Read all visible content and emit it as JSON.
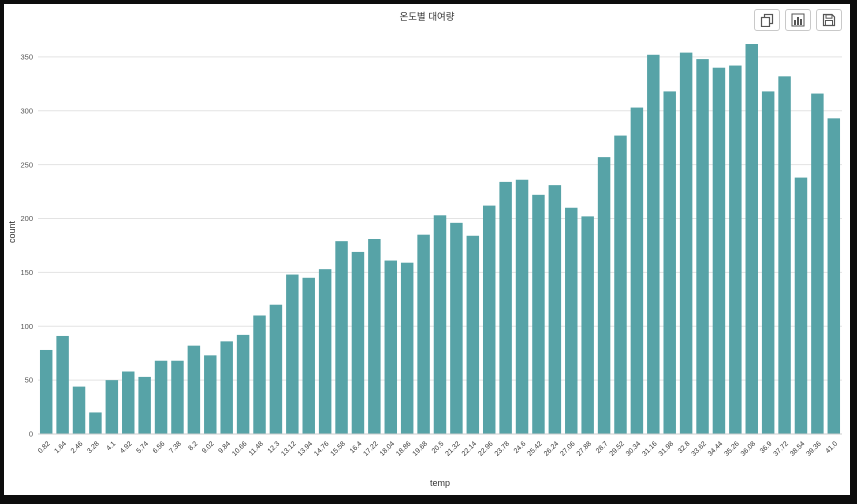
{
  "window": {
    "toolbar": {
      "copy_button": "copy",
      "chart_button": "chart",
      "save_button": "save"
    }
  },
  "chart_data": {
    "type": "bar",
    "title": "온도별 대여량",
    "xlabel": "temp",
    "ylabel": "count",
    "bar_color": "#57a3a7",
    "grid_color": "#e3e3e3",
    "tick_color": "#333333",
    "ylim": [
      0,
      375
    ],
    "yticks": [
      0,
      50,
      100,
      150,
      200,
      250,
      300,
      350
    ],
    "grid": true,
    "legend": "none",
    "categories": [
      "0.82",
      "1.64",
      "2.46",
      "3.28",
      "4.1",
      "4.92",
      "5.74",
      "6.56",
      "7.38",
      "8.2",
      "9.02",
      "9.84",
      "10.66",
      "11.48",
      "12.3",
      "13.12",
      "13.94",
      "14.76",
      "15.58",
      "16.4",
      "17.22",
      "18.04",
      "18.86",
      "19.68",
      "20.5",
      "21.32",
      "22.14",
      "22.96",
      "23.78",
      "24.6",
      "25.42",
      "26.24",
      "27.06",
      "27.88",
      "28.7",
      "29.52",
      "30.34",
      "31.16",
      "31.98",
      "32.8",
      "33.62",
      "34.44",
      "35.26",
      "36.08",
      "36.9",
      "37.72",
      "38.54",
      "39.36",
      "41.0"
    ],
    "values": [
      78,
      91,
      44,
      20,
      50,
      58,
      53,
      68,
      68,
      82,
      73,
      86,
      92,
      110,
      120,
      148,
      145,
      153,
      179,
      169,
      181,
      161,
      159,
      185,
      203,
      196,
      184,
      212,
      234,
      236,
      222,
      231,
      210,
      202,
      257,
      277,
      303,
      352,
      318,
      354,
      348,
      340,
      342,
      362,
      318,
      332,
      238,
      316,
      293
    ]
  }
}
